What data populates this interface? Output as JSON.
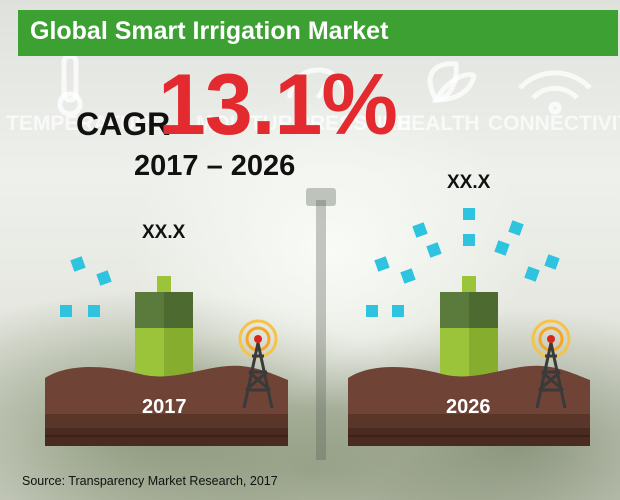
{
  "header": {
    "title": "Global Smart Irrigation Market"
  },
  "background_labels": [
    "TEMPERATURE",
    "MOISTURE",
    "PRESSURE",
    "HEALTH",
    "CONNECTIVITY"
  ],
  "cagr": {
    "label": "CAGR",
    "value": "13.1%",
    "period": "2017 – 2026"
  },
  "chart_data": {
    "type": "bar",
    "categories": [
      "2017",
      "2026"
    ],
    "value_labels": [
      "XX.X",
      "XX.X"
    ],
    "title": "Global Smart Irrigation Market",
    "xlabel": "",
    "ylabel": ""
  },
  "colors": {
    "header_bg": "#3da033",
    "cagr_value": "#e22a2f",
    "soil": "#6f4436",
    "battery_dark": "#5b7b3c",
    "battery_light": "#9cc43a",
    "signal_squares": "#2ec3df",
    "tower_rings": "#f5a623"
  },
  "icons": {
    "soil": "soil-block-icon",
    "sensor": "battery-sensor-icon",
    "tower": "signal-tower-icon",
    "signal": "wifi-signal-dots-icon"
  },
  "footer": {
    "source": "Source: Transparency Market Research, 2017"
  }
}
